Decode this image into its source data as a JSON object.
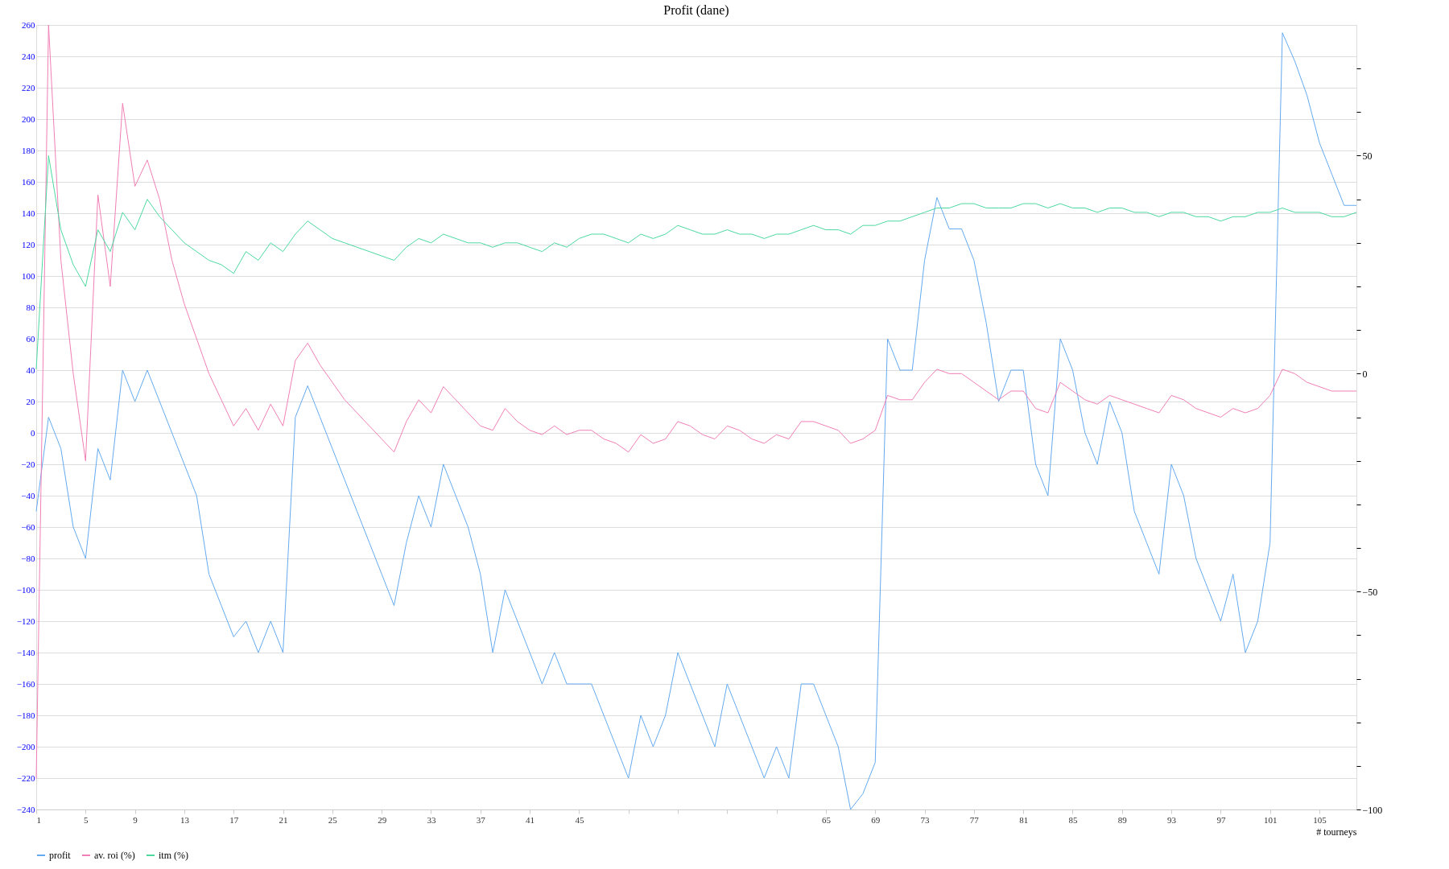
{
  "chart_data": {
    "type": "line",
    "title": "Profit  (dane)",
    "xlabel": "# tourneys",
    "x": [
      1,
      2,
      3,
      4,
      5,
      6,
      7,
      8,
      9,
      10,
      11,
      12,
      13,
      14,
      15,
      16,
      17,
      18,
      19,
      20,
      21,
      22,
      23,
      24,
      25,
      26,
      27,
      28,
      29,
      30,
      31,
      32,
      33,
      34,
      35,
      36,
      37,
      38,
      39,
      40,
      41,
      42,
      43,
      44,
      45,
      46,
      47,
      48,
      49,
      50,
      51,
      52,
      53,
      54,
      55,
      56,
      57,
      58,
      59,
      60,
      61,
      62,
      63,
      64,
      65,
      66,
      67,
      68,
      69,
      70,
      71,
      72,
      73,
      74,
      75,
      76,
      77,
      78,
      79,
      80,
      81,
      82,
      83,
      84,
      85,
      86,
      87,
      88,
      89,
      90,
      91,
      92,
      93,
      94,
      95,
      96,
      97,
      98,
      99,
      100,
      101,
      102,
      103,
      104,
      105,
      106,
      107,
      108
    ],
    "series": [
      {
        "name": "profit",
        "color": "#64aaf0",
        "values": [
          -50,
          10,
          -10,
          -60,
          -80,
          -10,
          -30,
          40,
          20,
          40,
          20,
          0,
          -20,
          -40,
          -90,
          -110,
          -130,
          -120,
          -140,
          -120,
          -140,
          10,
          30,
          10,
          -10,
          -30,
          -50,
          -70,
          -90,
          -110,
          -70,
          -40,
          -60,
          -20,
          -40,
          -60,
          -90,
          -140,
          -100,
          -120,
          -140,
          -160,
          -140,
          -160,
          -160,
          -160,
          -180,
          -200,
          -220,
          -180,
          -200,
          -180,
          -140,
          -160,
          -180,
          -200,
          -160,
          -180,
          -200,
          -220,
          -200,
          -220,
          -160,
          -160,
          -180,
          -200,
          -240,
          -230,
          -210,
          60,
          40,
          40,
          110,
          150,
          130,
          130,
          110,
          70,
          20,
          40,
          40,
          -20,
          -40,
          60,
          40,
          0,
          -20,
          20,
          0,
          -50,
          -70,
          -90,
          -20,
          -40,
          -80,
          -100,
          -120,
          -90,
          -140,
          -120,
          -70,
          255,
          237,
          215,
          185,
          165,
          145,
          145
        ]
      },
      {
        "name": "av. roi (%)",
        "color": "#f07fb5",
        "axis": "y2",
        "values": [
          -93,
          80,
          26,
          0,
          -20,
          41,
          20,
          62,
          43,
          49,
          40,
          26,
          16,
          8,
          0,
          -6,
          -12,
          -8,
          -13,
          -7,
          -12,
          3,
          7,
          2,
          -2,
          -6,
          -9,
          -12,
          -15,
          -18,
          -11,
          -6,
          -9,
          -3,
          -6,
          -9,
          -12,
          -13,
          -8,
          -11,
          -13,
          -14,
          -12,
          -14,
          -13,
          -13,
          -15,
          -16,
          -18,
          -14,
          -16,
          -15,
          -11,
          -12,
          -14,
          -15,
          -12,
          -13,
          -15,
          -16,
          -14,
          -15,
          -11,
          -11,
          -12,
          -13,
          -16,
          -15,
          -13,
          -5,
          -6,
          -6,
          -2,
          1,
          0,
          0,
          -2,
          -4,
          -6,
          -4,
          -4,
          -8,
          -9,
          -2,
          -4,
          -6,
          -7,
          -5,
          -6,
          -7,
          -8,
          -9,
          -5,
          -6,
          -8,
          -9,
          -10,
          -8,
          -9,
          -8,
          -5,
          1,
          0,
          -2,
          -3,
          -4,
          -4,
          -4
        ]
      },
      {
        "name": "itm (%)",
        "color": "#4cd9a0",
        "axis": "y2",
        "values": [
          1,
          50,
          33,
          25,
          20,
          33,
          28,
          37,
          33,
          40,
          36,
          33,
          30,
          28,
          26,
          25,
          23,
          28,
          26,
          30,
          28,
          32,
          35,
          33,
          31,
          30,
          29,
          28,
          27,
          26,
          29,
          31,
          30,
          32,
          31,
          30,
          30,
          29,
          30,
          30,
          29,
          28,
          30,
          29,
          31,
          32,
          32,
          31,
          30,
          32,
          31,
          32,
          34,
          33,
          32,
          32,
          33,
          32,
          32,
          31,
          32,
          32,
          33,
          34,
          33,
          33,
          32,
          34,
          34,
          35,
          35,
          36,
          37,
          38,
          38,
          39,
          39,
          38,
          38,
          38,
          39,
          39,
          38,
          39,
          38,
          38,
          37,
          38,
          38,
          37,
          37,
          36,
          37,
          37,
          36,
          36,
          35,
          36,
          36,
          37,
          37,
          38,
          37,
          37,
          37,
          36,
          36,
          37
        ]
      }
    ],
    "xlim": [
      1,
      108
    ],
    "xticks": [
      1,
      5,
      9,
      13,
      17,
      21,
      25,
      29,
      33,
      37,
      41,
      45,
      {
        "value": 49,
        "label": null
      },
      {
        "value": 53,
        "label": null
      },
      {
        "value": 57,
        "label": null
      },
      {
        "value": 61,
        "label": null
      },
      65,
      69,
      73,
      77,
      81,
      85,
      89,
      93,
      97,
      101,
      105
    ],
    "ylim": [
      -240,
      260
    ],
    "yticks": [
      -240,
      -220,
      -200,
      -180,
      -160,
      -140,
      -120,
      -100,
      -80,
      -60,
      -40,
      -20,
      0,
      20,
      40,
      60,
      80,
      100,
      120,
      140,
      160,
      180,
      200,
      220,
      240,
      260
    ],
    "y2lim": [
      -100,
      80
    ],
    "y2ticks": [
      -100,
      {
        "value": -90,
        "label": null
      },
      {
        "value": -80,
        "label": null
      },
      {
        "value": -70,
        "label": null
      },
      {
        "value": -60,
        "label": null
      },
      -50,
      {
        "value": -40,
        "label": null
      },
      {
        "value": -30,
        "label": null
      },
      {
        "value": -20,
        "label": null
      },
      {
        "value": -10,
        "label": null
      },
      0,
      {
        "value": 10,
        "label": null
      },
      {
        "value": 20,
        "label": null
      },
      {
        "value": 30,
        "label": null
      },
      {
        "value": 40,
        "label": null
      },
      50,
      {
        "value": 60,
        "label": null
      },
      {
        "value": 70,
        "label": null
      }
    ],
    "grid": "y",
    "legend": "bottom",
    "marker": "none",
    "line_style": "solid"
  }
}
